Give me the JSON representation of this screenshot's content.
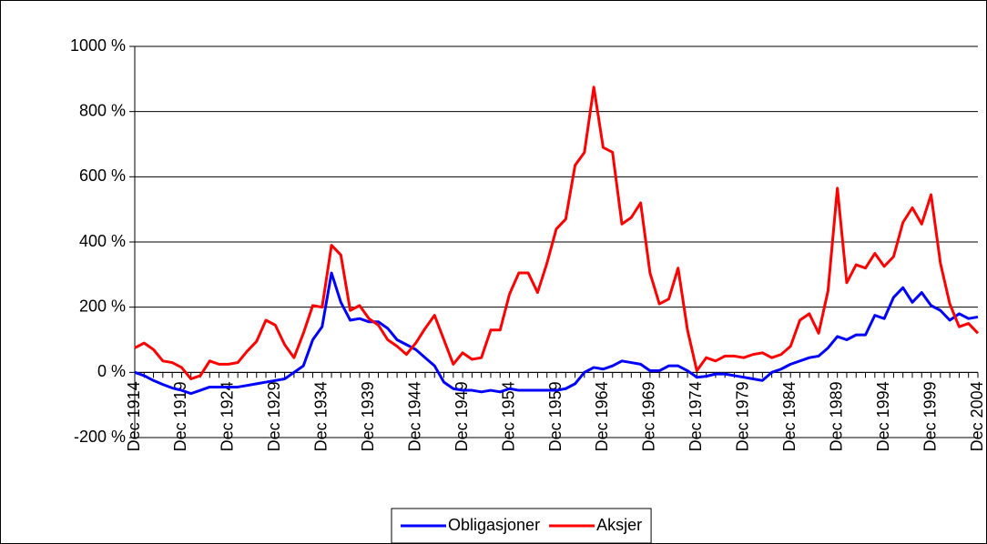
{
  "chart_data": {
    "type": "line",
    "categories": [
      "Dec 1914",
      null,
      null,
      null,
      null,
      "Dec 1919",
      null,
      null,
      null,
      null,
      "Dec 1924",
      null,
      null,
      null,
      null,
      "Dec 1929",
      null,
      null,
      null,
      null,
      "Dec 1934",
      null,
      null,
      null,
      null,
      "Dec 1939",
      null,
      null,
      null,
      null,
      "Dec 1944",
      null,
      null,
      null,
      null,
      "Dec 1949",
      null,
      null,
      null,
      null,
      "Dec 1954",
      null,
      null,
      null,
      null,
      "Dec 1959",
      null,
      null,
      null,
      null,
      "Dec 1964",
      null,
      null,
      null,
      null,
      "Dec 1969",
      null,
      null,
      null,
      null,
      "Dec 1974",
      null,
      null,
      null,
      null,
      "Dec 1979",
      null,
      null,
      null,
      null,
      "Dec 1984",
      null,
      null,
      null,
      null,
      "Dec 1989",
      null,
      null,
      null,
      null,
      "Dec 1994",
      null,
      null,
      null,
      null,
      "Dec 1999",
      null,
      null,
      null,
      null,
      "Dec 2004"
    ],
    "series": [
      {
        "name": "Obligasjoner",
        "color": "#0000ff",
        "values": [
          0,
          -10,
          -25,
          -37,
          -48,
          -55,
          -65,
          -55,
          -45,
          -45,
          -45,
          -45,
          -40,
          -35,
          -30,
          -25,
          -20,
          0,
          20,
          100,
          140,
          305,
          215,
          160,
          165,
          155,
          155,
          135,
          100,
          85,
          70,
          45,
          20,
          -30,
          -50,
          -55,
          -55,
          -60,
          -55,
          -60,
          -50,
          -55,
          -55,
          -55,
          -55,
          -55,
          -50,
          -35,
          0,
          15,
          10,
          20,
          35,
          30,
          25,
          5,
          5,
          20,
          20,
          5,
          -15,
          -12,
          -5,
          -5,
          -10,
          -15,
          -20,
          -25,
          0,
          10,
          25,
          35,
          45,
          50,
          75,
          110,
          100,
          115,
          115,
          175,
          165,
          230,
          260,
          215,
          245,
          205,
          190,
          160,
          180,
          165,
          170
        ]
      },
      {
        "name": "Aksjer",
        "color": "#ff0000",
        "values": [
          75,
          90,
          70,
          35,
          30,
          15,
          -20,
          -10,
          35,
          25,
          25,
          30,
          65,
          95,
          160,
          145,
          85,
          45,
          120,
          205,
          200,
          390,
          360,
          190,
          205,
          165,
          145,
          100,
          80,
          55,
          90,
          135,
          175,
          100,
          25,
          60,
          40,
          45,
          130,
          130,
          240,
          305,
          305,
          245,
          335,
          440,
          470,
          635,
          675,
          875,
          690,
          675,
          455,
          475,
          520,
          305,
          210,
          225,
          320,
          130,
          5,
          45,
          35,
          50,
          50,
          45,
          55,
          60,
          45,
          55,
          80,
          160,
          180,
          120,
          250,
          565,
          275,
          330,
          320,
          365,
          325,
          355,
          460,
          505,
          455,
          545,
          335,
          210,
          140,
          150,
          120
        ]
      }
    ],
    "ylim": [
      -200,
      1000
    ],
    "yticks": [
      {
        "value": -200,
        "label": "-200 %"
      },
      {
        "value": 0,
        "label": "0 %"
      },
      {
        "value": 200,
        "label": "200 %"
      },
      {
        "value": 400,
        "label": "400 %"
      },
      {
        "value": 600,
        "label": "600 %"
      },
      {
        "value": 800,
        "label": "800 %"
      },
      {
        "value": 1000,
        "label": "1000 %"
      }
    ],
    "grid": true,
    "legend": "bottom"
  }
}
